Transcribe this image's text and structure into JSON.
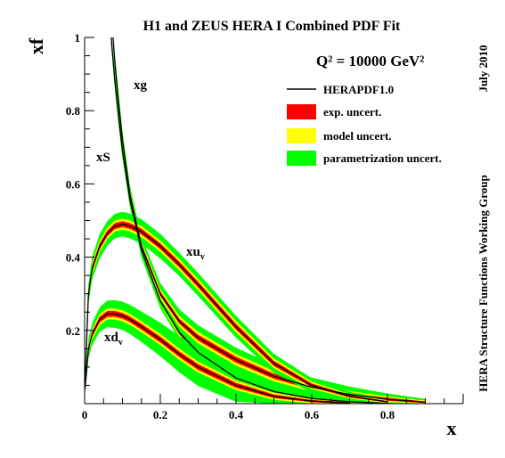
{
  "chart_data": {
    "type": "line",
    "title": "H1 and ZEUS HERA I  Combined PDF Fit",
    "scale_label": "Q² = 10000 GeV²",
    "xlabel": "x",
    "ylabel": "xf",
    "xlim": [
      0,
      1
    ],
    "ylim": [
      0,
      1
    ],
    "x_ticks": [
      "0",
      "0.2",
      "0.4",
      "0.6",
      "0.8"
    ],
    "y_ticks": [
      "0.2",
      "0.4",
      "0.6",
      "0.8",
      "1"
    ],
    "side_label_top": "July 2010",
    "side_label_bottom": "HERA Structure Functions Working Group",
    "legend": {
      "placement": "top-right",
      "central": "HERAPDF1.0",
      "exp": "exp. uncert.",
      "model": "model uncert.",
      "param": "parametrization uncert."
    },
    "colors": {
      "central": "#000000",
      "exp": "#ff0000",
      "model": "#ffff00",
      "param": "#00ff00"
    },
    "series": [
      {
        "name": "xg",
        "label": "xg",
        "x": [
          0.07,
          0.08,
          0.09,
          0.1,
          0.12,
          0.15,
          0.2,
          0.25,
          0.3,
          0.4,
          0.5,
          0.6,
          0.7,
          0.8
        ],
        "y": [
          1.0,
          0.88,
          0.78,
          0.69,
          0.555,
          0.42,
          0.28,
          0.195,
          0.14,
          0.07,
          0.033,
          0.014,
          0.005,
          0.001
        ],
        "exp_unc": [
          0.006,
          0.006,
          0.006,
          0.006,
          0.006,
          0.006,
          0.006,
          0.006,
          0.006,
          0.005,
          0.004,
          0.003,
          0.002,
          0.001
        ],
        "model_unc": [
          0.01,
          0.01,
          0.01,
          0.01,
          0.009,
          0.009,
          0.008,
          0.008,
          0.008,
          0.007,
          0.006,
          0.004,
          0.003,
          0.002
        ],
        "param_unc": [
          0.014,
          0.014,
          0.014,
          0.013,
          0.013,
          0.012,
          0.012,
          0.012,
          0.012,
          0.011,
          0.009,
          0.007,
          0.005,
          0.003
        ]
      },
      {
        "name": "xS",
        "label": "xS",
        "x": [
          0.075,
          0.08,
          0.09,
          0.1,
          0.12,
          0.15,
          0.2,
          0.25,
          0.3,
          0.4,
          0.5,
          0.6,
          0.7,
          0.8,
          0.9
        ],
        "y": [
          1.0,
          0.93,
          0.82,
          0.72,
          0.57,
          0.43,
          0.3,
          0.225,
          0.18,
          0.12,
          0.075,
          0.045,
          0.025,
          0.012,
          0.004
        ],
        "exp_unc": [
          0.006,
          0.006,
          0.006,
          0.006,
          0.006,
          0.006,
          0.006,
          0.007,
          0.008,
          0.008,
          0.007,
          0.006,
          0.005,
          0.004,
          0.002
        ],
        "model_unc": [
          0.01,
          0.01,
          0.01,
          0.01,
          0.01,
          0.01,
          0.011,
          0.012,
          0.013,
          0.013,
          0.012,
          0.01,
          0.008,
          0.006,
          0.004
        ],
        "param_unc": [
          0.015,
          0.015,
          0.015,
          0.015,
          0.016,
          0.017,
          0.02,
          0.022,
          0.022,
          0.021,
          0.02,
          0.017,
          0.014,
          0.01,
          0.006
        ]
      },
      {
        "name": "xuv",
        "label": "xu",
        "label_sub": "v",
        "x": [
          0.001,
          0.01,
          0.02,
          0.04,
          0.06,
          0.08,
          0.1,
          0.12,
          0.15,
          0.2,
          0.25,
          0.3,
          0.4,
          0.5,
          0.6,
          0.7,
          0.8
        ],
        "y": [
          0.05,
          0.3,
          0.37,
          0.43,
          0.465,
          0.485,
          0.49,
          0.485,
          0.47,
          0.43,
          0.38,
          0.325,
          0.21,
          0.11,
          0.05,
          0.02,
          0.005
        ],
        "exp_unc": [
          0.005,
          0.007,
          0.008,
          0.008,
          0.008,
          0.008,
          0.008,
          0.008,
          0.008,
          0.008,
          0.008,
          0.008,
          0.008,
          0.007,
          0.005,
          0.003,
          0.002
        ],
        "model_unc": [
          0.008,
          0.01,
          0.011,
          0.012,
          0.012,
          0.012,
          0.012,
          0.012,
          0.012,
          0.012,
          0.012,
          0.012,
          0.012,
          0.01,
          0.008,
          0.005,
          0.003
        ],
        "param_unc": [
          0.012,
          0.018,
          0.02,
          0.022,
          0.022,
          0.022,
          0.022,
          0.022,
          0.022,
          0.022,
          0.02,
          0.02,
          0.018,
          0.016,
          0.012,
          0.008,
          0.005
        ]
      },
      {
        "name": "xdv",
        "label": "xd",
        "label_sub": "v",
        "x": [
          0.001,
          0.01,
          0.02,
          0.04,
          0.06,
          0.08,
          0.1,
          0.12,
          0.15,
          0.2,
          0.25,
          0.3,
          0.4,
          0.5,
          0.6,
          0.7
        ],
        "y": [
          0.04,
          0.15,
          0.19,
          0.23,
          0.245,
          0.245,
          0.24,
          0.23,
          0.21,
          0.175,
          0.135,
          0.1,
          0.05,
          0.02,
          0.007,
          0.002
        ],
        "exp_unc": [
          0.005,
          0.006,
          0.007,
          0.008,
          0.008,
          0.008,
          0.008,
          0.008,
          0.008,
          0.008,
          0.008,
          0.008,
          0.007,
          0.005,
          0.003,
          0.002
        ],
        "model_unc": [
          0.008,
          0.01,
          0.011,
          0.012,
          0.012,
          0.012,
          0.012,
          0.012,
          0.012,
          0.012,
          0.012,
          0.012,
          0.01,
          0.008,
          0.005,
          0.003
        ],
        "param_unc": [
          0.012,
          0.018,
          0.02,
          0.022,
          0.025,
          0.026,
          0.027,
          0.028,
          0.03,
          0.034,
          0.038,
          0.04,
          0.035,
          0.028,
          0.018,
          0.01
        ]
      }
    ]
  }
}
